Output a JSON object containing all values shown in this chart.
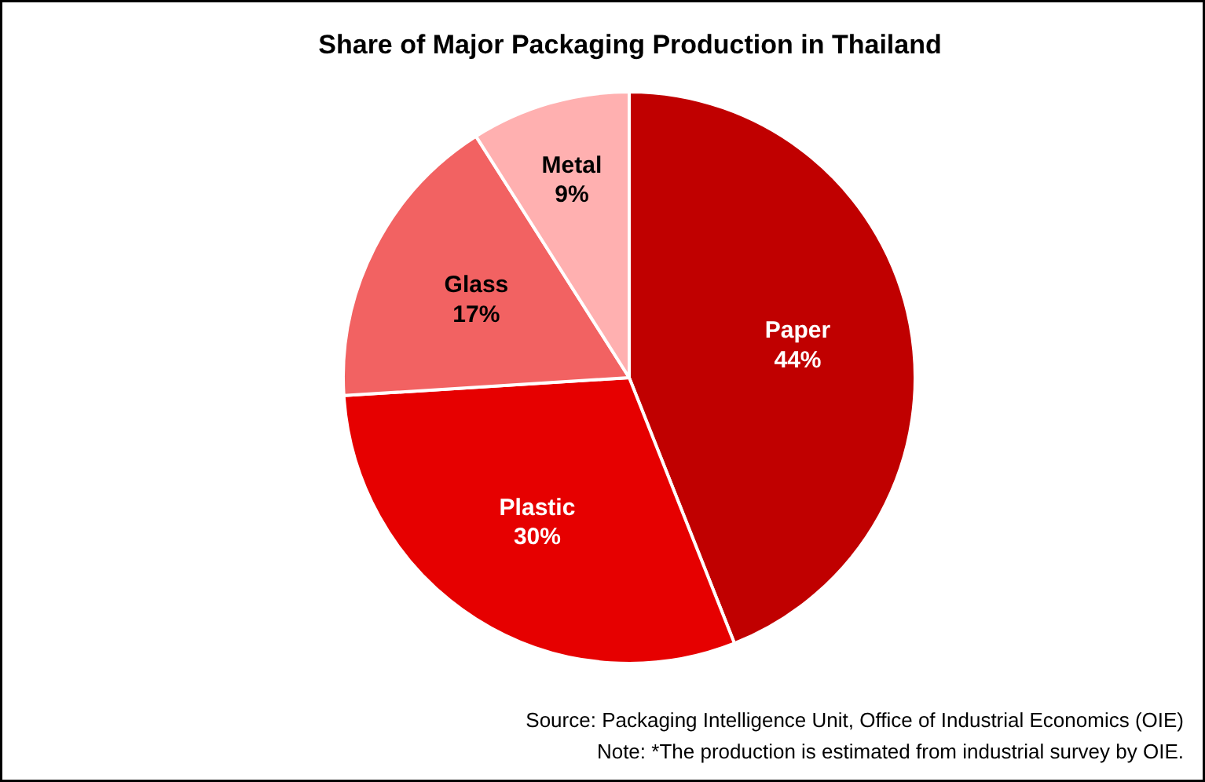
{
  "chart_data": {
    "type": "pie",
    "title": "Share of Major Packaging Production in Thailand",
    "categories": [
      "Paper",
      "Plastic",
      "Glass",
      "Metal"
    ],
    "values": [
      44,
      30,
      17,
      9
    ],
    "colors": [
      "#c00000",
      "#e60000",
      "#f26262",
      "#ffb0b0"
    ],
    "value_labels": [
      "44%",
      "30%",
      "17%",
      "9%"
    ],
    "annotations": [
      "Source: Packaging Intelligence Unit, Office of Industrial Economics (OIE)",
      "Note: *The production is estimated from industrial survey by OIE."
    ]
  }
}
